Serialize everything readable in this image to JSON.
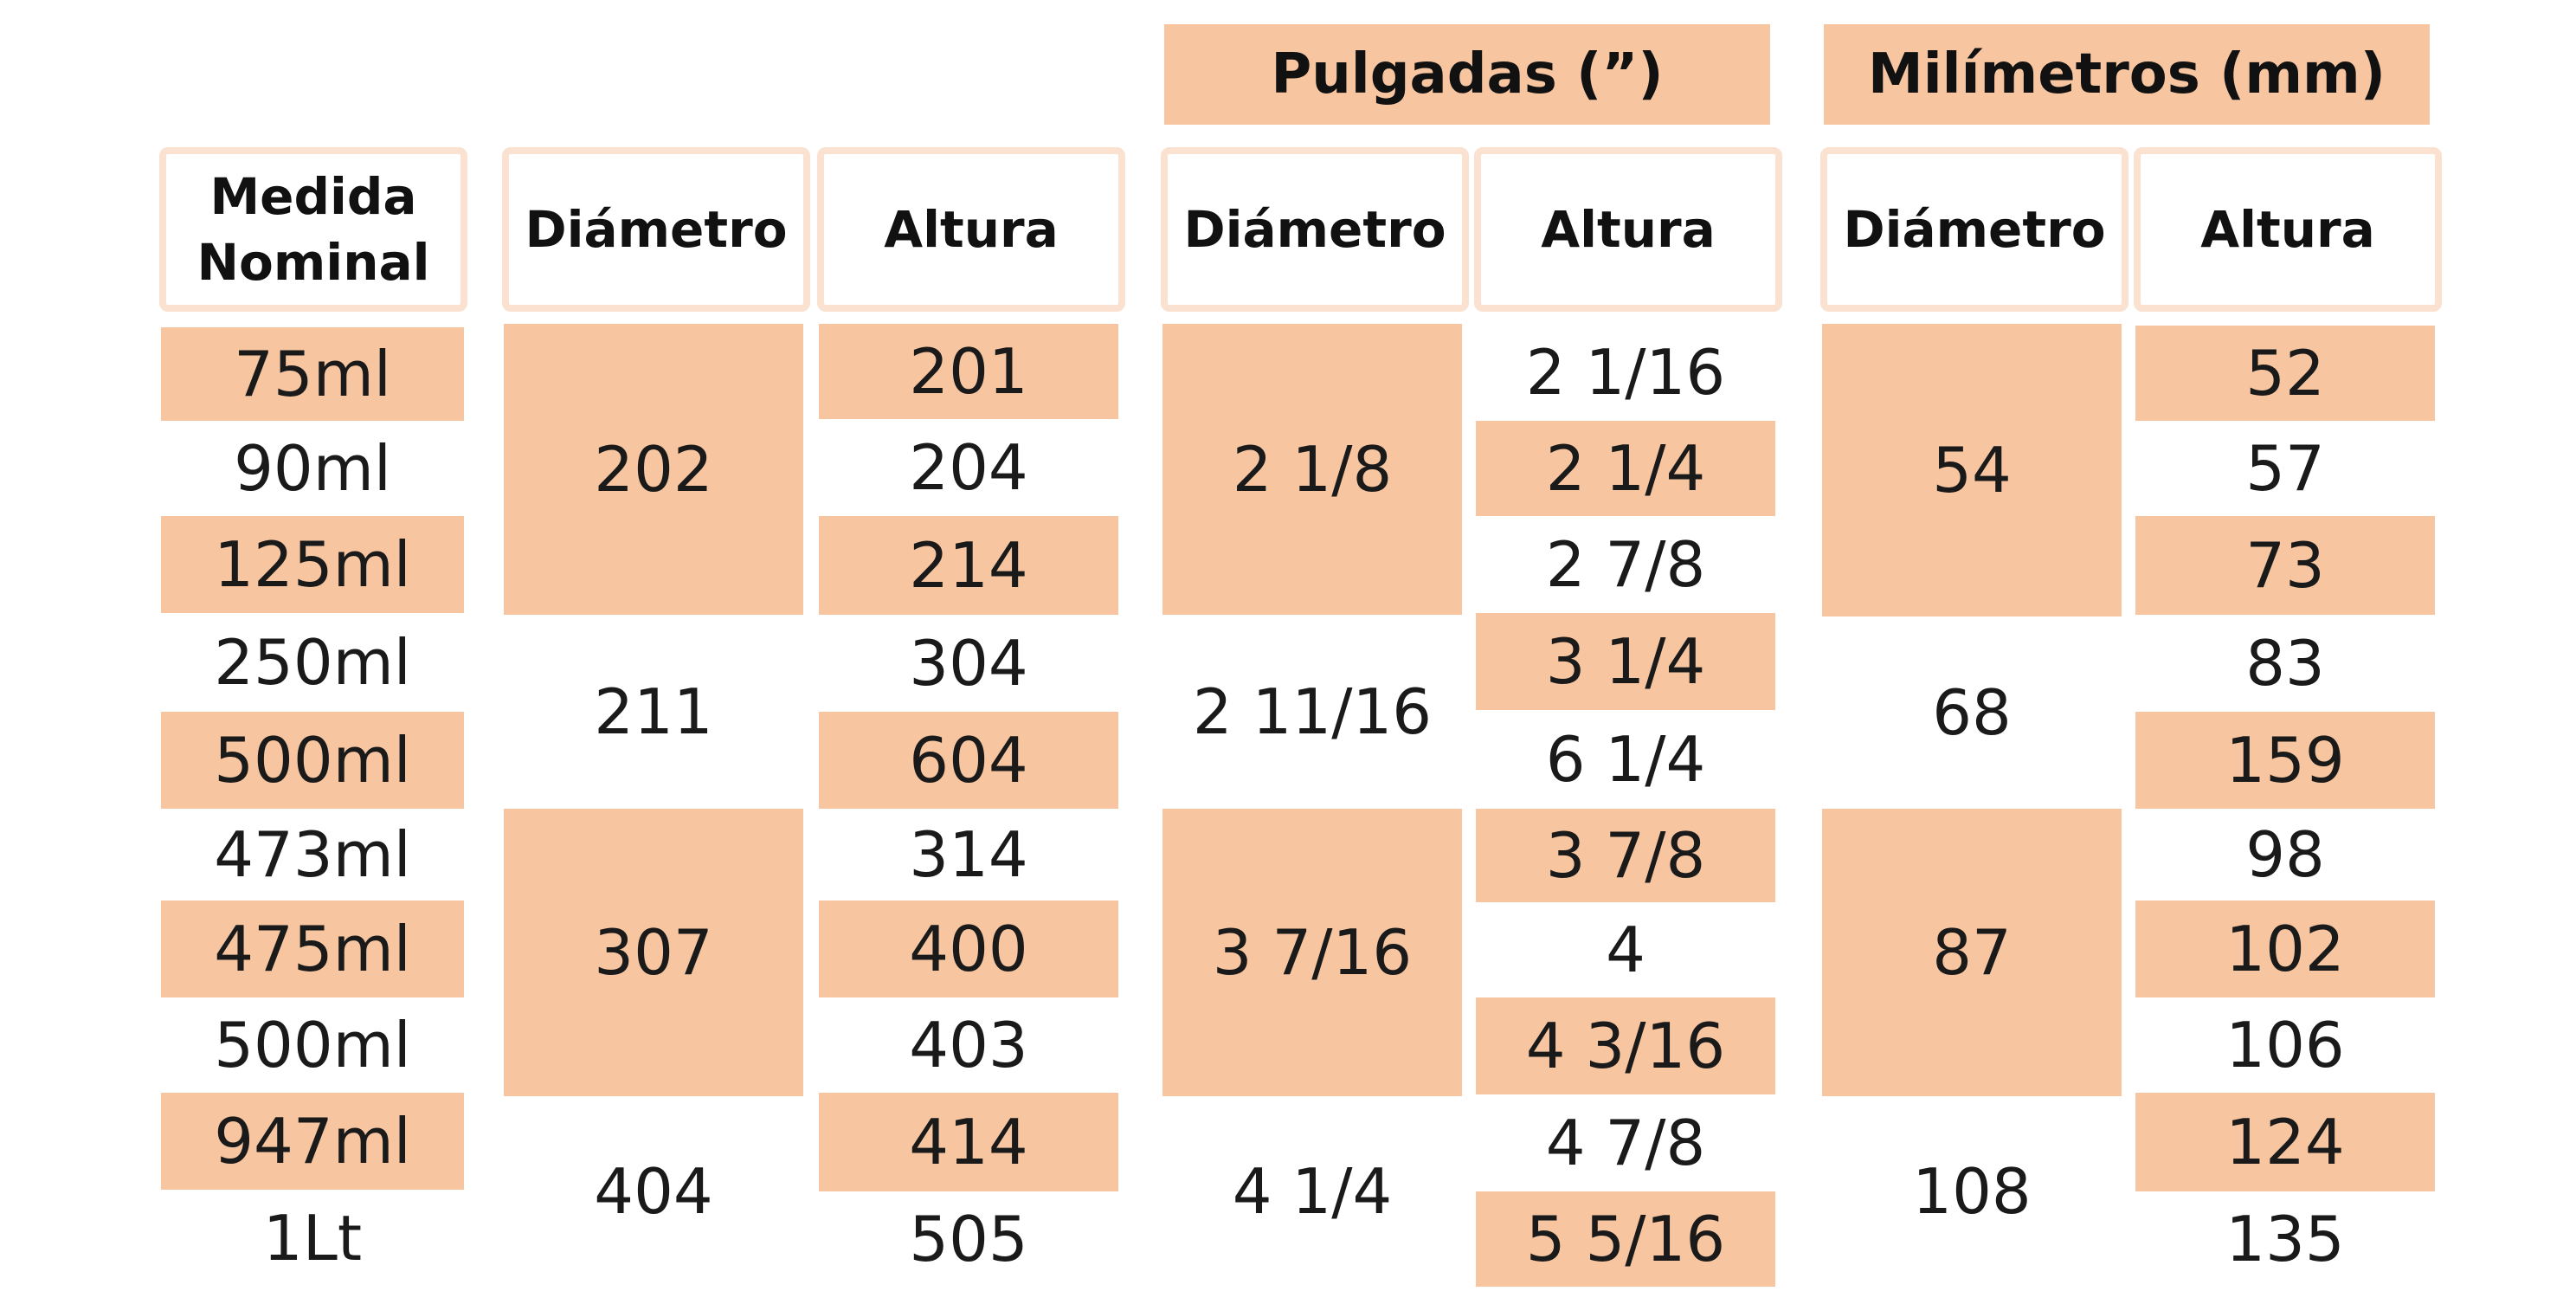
{
  "colors": {
    "accent": "#f7c6a1",
    "header_border": "#fbe1cf"
  },
  "group_headers": {
    "inches": "Pulgadas (”)",
    "mm": "Milímetros (mm)"
  },
  "column_headers": {
    "nominal": "Medida\nNominal",
    "diam_code": "Diámetro",
    "height_code": "Altura",
    "diam_in": "Diámetro",
    "height_in": "Altura",
    "diam_mm": "Diámetro",
    "height_mm": "Altura"
  },
  "nominal": [
    "75ml",
    "90ml",
    "125ml",
    "250ml",
    "500ml",
    "473ml",
    "475ml",
    "500ml",
    "947ml",
    "1Lt"
  ],
  "diameter_code": [
    "202",
    "211",
    "307",
    "404"
  ],
  "height_code": [
    "201",
    "204",
    "214",
    "304",
    "604",
    "314",
    "400",
    "403",
    "414",
    "505"
  ],
  "diameter_in": [
    "2 1/8",
    "2 11/16",
    "3 7/16",
    "4 1/4"
  ],
  "height_in": [
    "2 1/16",
    "2 1/4",
    "2 7/8",
    "3 1/4",
    "6 1/4",
    "3 7/8",
    "4",
    "4 3/16",
    "4 7/8",
    "5 5/16"
  ],
  "diameter_mm": [
    "54",
    "68",
    "87",
    "108"
  ],
  "height_mm": [
    "52",
    "57",
    "73",
    "83",
    "159",
    "98",
    "102",
    "106",
    "124",
    "135"
  ]
}
